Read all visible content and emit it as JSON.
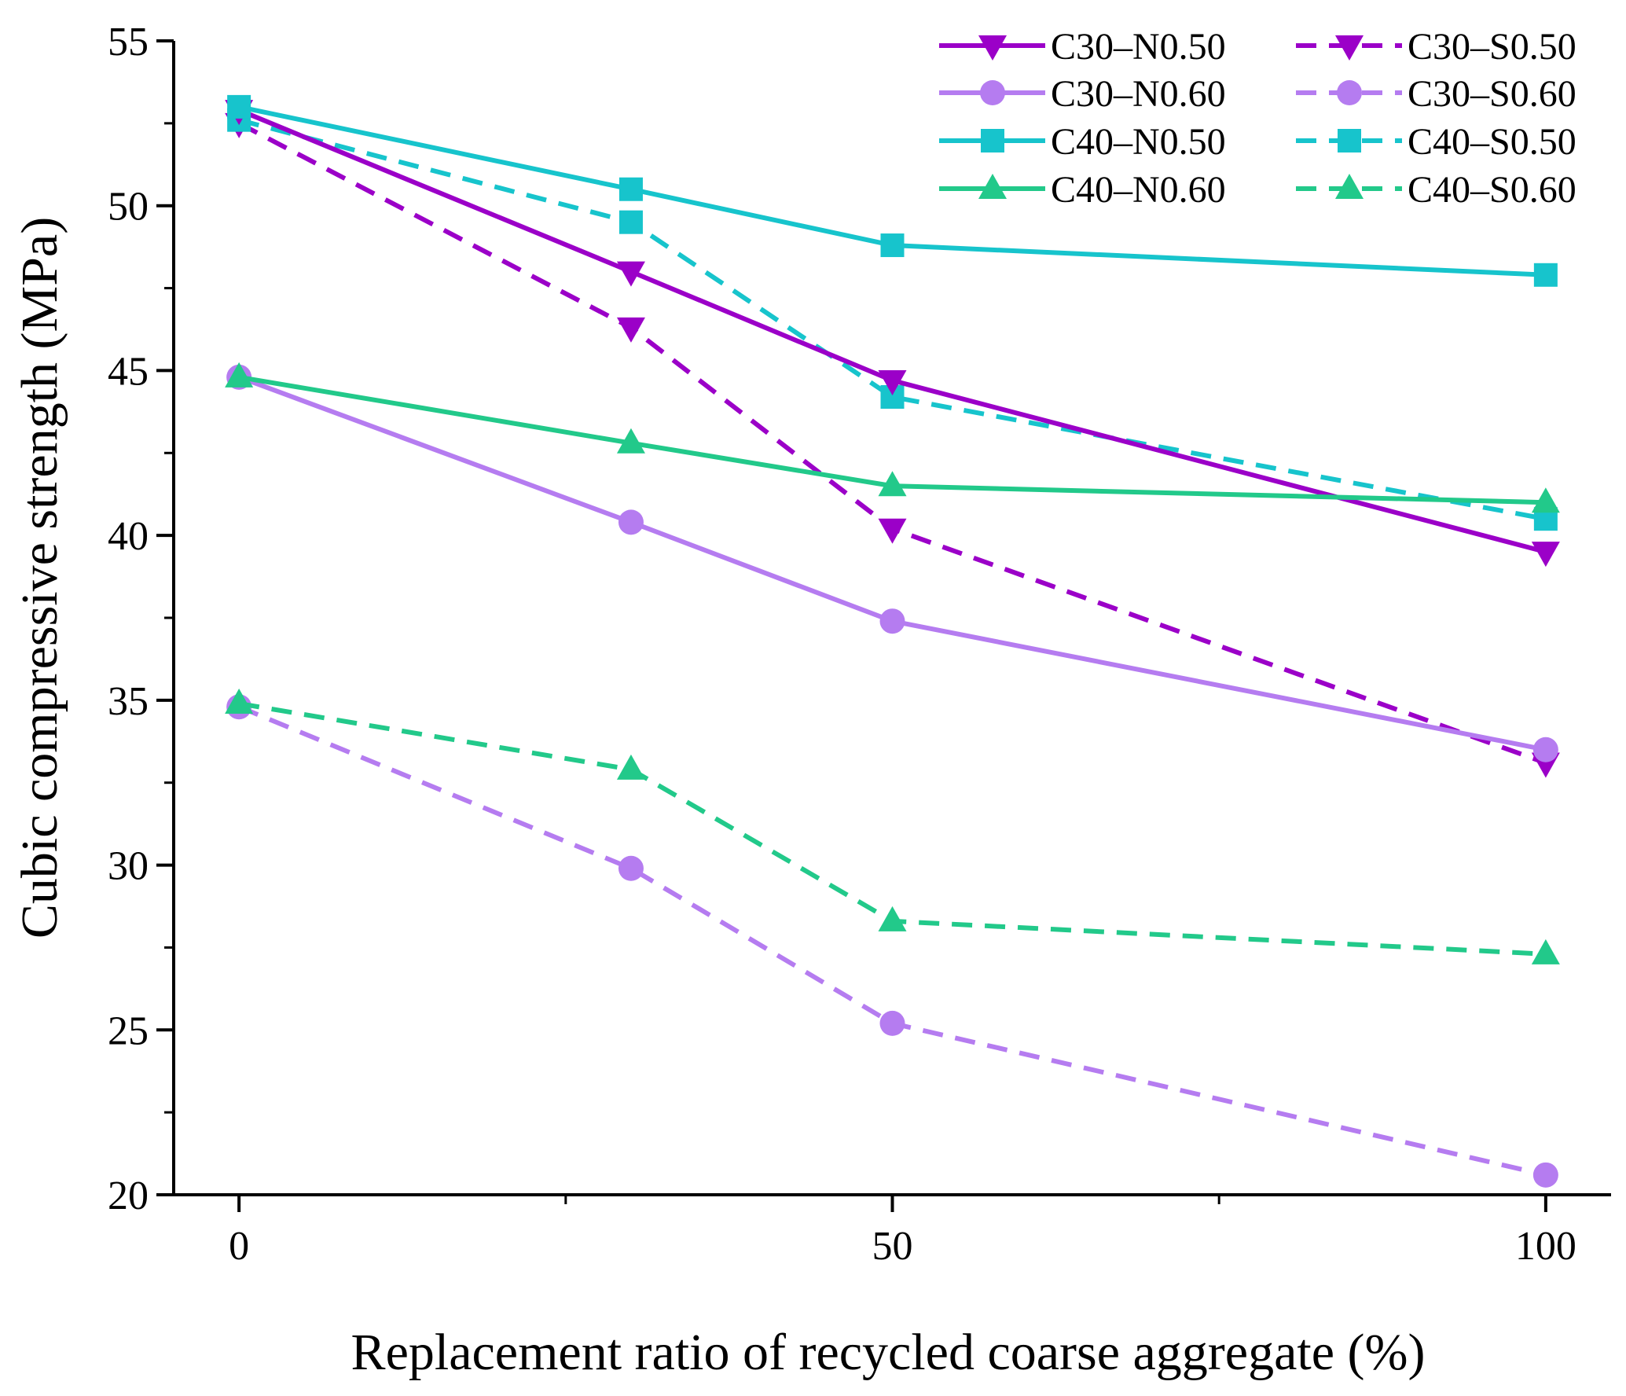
{
  "chart_data": {
    "type": "line",
    "title": "",
    "xlabel": "Replacement ratio of recycled coarse aggregate (%)",
    "ylabel": "Cubic compressive strength (MPa)",
    "xlim": [
      -5,
      105
    ],
    "ylim": [
      20,
      55
    ],
    "xticks": [
      0,
      50,
      100
    ],
    "xtick_labels": [
      "0",
      "50",
      "100"
    ],
    "xminor": [
      25,
      75
    ],
    "yticks": [
      20,
      25,
      30,
      35,
      40,
      45,
      50,
      55
    ],
    "ytick_labels": [
      "20",
      "25",
      "30",
      "35",
      "40",
      "45",
      "50",
      "55"
    ],
    "yminor": [
      22.5,
      27.5,
      32.5,
      37.5,
      42.5,
      47.5,
      52.5
    ],
    "grid": false,
    "legend": "top-right",
    "x": [
      0,
      30,
      50,
      100
    ],
    "series": [
      {
        "name": "C30–N0.50",
        "values": [
          52.9,
          48.0,
          44.7,
          39.5
        ],
        "color": "#9B00C8",
        "dash": "solid",
        "marker": "triangle-down"
      },
      {
        "name": "C30–N0.60",
        "values": [
          44.8,
          40.4,
          37.4,
          33.5
        ],
        "color": "#B57CF0",
        "dash": "solid",
        "marker": "circle"
      },
      {
        "name": "C40–N0.50",
        "values": [
          53.0,
          50.5,
          48.8,
          47.9
        ],
        "color": "#17C4CC",
        "dash": "solid",
        "marker": "square"
      },
      {
        "name": "C40–N0.60",
        "values": [
          44.8,
          42.8,
          41.5,
          41.0
        ],
        "color": "#22C98A",
        "dash": "solid",
        "marker": "triangle-up"
      },
      {
        "name": "C30–S0.50",
        "values": [
          52.5,
          46.3,
          40.2,
          33.1
        ],
        "color": "#9B00C8",
        "dash": "dashed",
        "marker": "triangle-down"
      },
      {
        "name": "C30–S0.60",
        "values": [
          34.8,
          29.9,
          25.2,
          20.6
        ],
        "color": "#B57CF0",
        "dash": "dashed",
        "marker": "circle"
      },
      {
        "name": "C40–S0.50",
        "values": [
          52.6,
          49.5,
          44.2,
          40.5
        ],
        "color": "#17C4CC",
        "dash": "dashed",
        "marker": "square"
      },
      {
        "name": "C40–S0.60",
        "values": [
          34.9,
          32.9,
          28.3,
          27.3
        ],
        "color": "#22C98A",
        "dash": "dashed",
        "marker": "triangle-up"
      }
    ]
  }
}
